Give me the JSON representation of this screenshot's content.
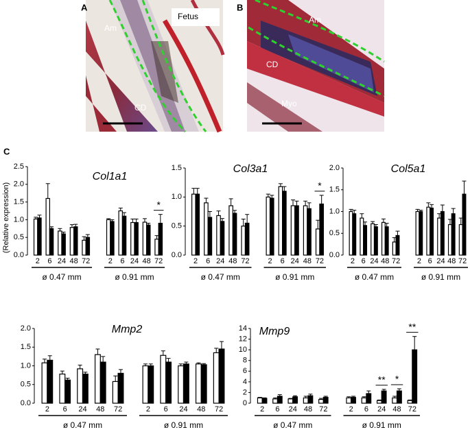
{
  "panels": [
    {
      "label": "A",
      "annotations": [
        "Am",
        "Fetus",
        "CD"
      ]
    },
    {
      "label": "B",
      "annotations": [
        "Am",
        "CD",
        "Myo"
      ]
    }
  ],
  "section_label": "C",
  "chart_data": [
    {
      "type": "bar",
      "title": "Col1a1",
      "ylabel": "(Relative expression)",
      "categories": [
        "2",
        "6",
        "24",
        "48",
        "72",
        "2",
        "6",
        "24",
        "48",
        "72"
      ],
      "groups": [
        "ø 0.47 mm",
        "ø 0.91 mm"
      ],
      "ylim": [
        0,
        2.5
      ],
      "yticks": [
        {
          "value": 0,
          "label": "0.0"
        },
        0.5,
        {
          "value": 1,
          "label": "1.0"
        },
        1.5,
        {
          "value": 2,
          "label": "2.0"
        },
        2.5
      ],
      "series": [
        {
          "color": "#ffffff",
          "values": [
            1.02,
            1.6,
            0.68,
            0.78,
            0.42,
            1.0,
            1.25,
            0.92,
            0.93,
            0.45
          ],
          "errors": [
            0.05,
            0.42,
            0.07,
            0.08,
            0.1,
            0.03,
            0.08,
            0.1,
            0.1,
            0.1
          ]
        },
        {
          "color": "#000000",
          "values": [
            1.05,
            0.75,
            0.6,
            0.8,
            0.5,
            0.95,
            1.1,
            0.92,
            0.85,
            0.9
          ],
          "errors": [
            0.08,
            0.05,
            0.05,
            0.07,
            0.08,
            0.05,
            0.1,
            0.1,
            0.05,
            0.25
          ]
        }
      ],
      "annotations": [
        {
          "text": "*",
          "index": 9
        }
      ]
    },
    {
      "type": "bar",
      "title": "Col3a1",
      "categories": [
        "2",
        "6",
        "24",
        "48",
        "72",
        "2",
        "6",
        "24",
        "48",
        "72"
      ],
      "groups": [
        "ø 0.47 mm",
        "ø 0.91 mm"
      ],
      "ylim": [
        0,
        1.5
      ],
      "yticks": [
        {
          "value": 0,
          "label": "0.0"
        },
        0.5,
        {
          "value": 1,
          "label": "1.0"
        },
        1.5
      ],
      "series": [
        {
          "color": "#ffffff",
          "values": [
            1.05,
            0.9,
            0.68,
            0.85,
            0.5,
            1.0,
            1.18,
            0.85,
            0.85,
            0.45
          ],
          "errors": [
            0.1,
            0.08,
            0.08,
            0.12,
            0.12,
            0.05,
            0.05,
            0.1,
            0.08,
            0.15
          ]
        },
        {
          "color": "#000000",
          "values": [
            1.05,
            0.65,
            0.58,
            0.72,
            0.55,
            0.98,
            1.1,
            0.85,
            0.8,
            0.88
          ],
          "errors": [
            0.1,
            0.1,
            0.05,
            0.05,
            0.15,
            0.05,
            0.08,
            0.08,
            0.1,
            0.15
          ]
        }
      ],
      "annotations": [
        {
          "text": "*",
          "index": 9
        }
      ]
    },
    {
      "type": "bar",
      "title": "Col5a1",
      "categories": [
        "2",
        "6",
        "24",
        "48",
        "72",
        "2",
        "6",
        "24",
        "48",
        "72"
      ],
      "groups": [
        "ø 0.47 mm",
        "ø 0.91 mm"
      ],
      "ylim": [
        0,
        2
      ],
      "yticks": [
        {
          "value": 0,
          "label": "0.0"
        },
        0.5,
        {
          "value": 1,
          "label": "1.0"
        },
        1.5,
        {
          "value": 2,
          "label": "2.0"
        }
      ],
      "series": [
        {
          "color": "#ffffff",
          "values": [
            1.0,
            0.85,
            0.72,
            0.75,
            0.3,
            1.0,
            1.1,
            0.85,
            0.7,
            0.7
          ],
          "errors": [
            0.05,
            0.1,
            0.05,
            0.08,
            0.1,
            0.05,
            0.1,
            0.1,
            0.12,
            0.15
          ]
        },
        {
          "color": "#000000",
          "values": [
            0.95,
            0.68,
            0.65,
            0.65,
            0.45,
            1.0,
            1.08,
            1.0,
            0.95,
            1.4
          ],
          "errors": [
            0.08,
            0.08,
            0.05,
            0.08,
            0.1,
            0.03,
            0.08,
            0.15,
            0.12,
            0.3
          ]
        }
      ],
      "annotations": []
    },
    {
      "type": "bar",
      "title": "Mmp2",
      "categories": [
        "2",
        "6",
        "24",
        "48",
        "72",
        "2",
        "6",
        "24",
        "48",
        "72"
      ],
      "groups": [
        "ø 0.47 mm",
        "ø 0.91 mm"
      ],
      "ylim": [
        0,
        2
      ],
      "yticks": [
        {
          "value": 0,
          "label": "0.0"
        },
        0.5,
        {
          "value": 1,
          "label": "1.0"
        },
        1.5,
        {
          "value": 2,
          "label": "2.0"
        }
      ],
      "series": [
        {
          "color": "#ffffff",
          "values": [
            1.08,
            0.78,
            0.92,
            1.3,
            0.58,
            1.0,
            1.28,
            1.0,
            1.05,
            1.35
          ],
          "errors": [
            0.1,
            0.08,
            0.1,
            0.15,
            0.15,
            0.05,
            0.12,
            0.05,
            0.03,
            0.12
          ]
        },
        {
          "color": "#000000",
          "values": [
            1.15,
            0.62,
            0.78,
            1.1,
            0.8,
            1.0,
            1.1,
            1.05,
            1.03,
            1.45
          ],
          "errors": [
            0.12,
            0.05,
            0.05,
            0.15,
            0.1,
            0.05,
            0.1,
            0.05,
            0.03,
            0.2
          ]
        }
      ],
      "annotations": []
    },
    {
      "type": "bar",
      "title": "Mmp9",
      "categories": [
        "2",
        "6",
        "24",
        "48",
        "72",
        "2",
        "6",
        "24",
        "48",
        "72"
      ],
      "groups": [
        "ø 0.47 mm",
        "ø 0.91 mm"
      ],
      "ylim": [
        0,
        14
      ],
      "yticks": [
        0,
        2,
        4,
        6,
        8,
        10,
        12,
        14
      ],
      "series": [
        {
          "color": "#ffffff",
          "values": [
            1.0,
            0.8,
            0.8,
            1.0,
            0.7,
            1.0,
            1.0,
            0.5,
            1.0,
            0.5
          ],
          "errors": [
            0.1,
            0.2,
            0.1,
            0.3,
            0.2,
            0.2,
            0.2,
            0.1,
            0.3,
            0.1
          ]
        },
        {
          "color": "#000000",
          "values": [
            0.9,
            1.3,
            1.2,
            1.4,
            1.1,
            1.1,
            1.8,
            2.3,
            2.3,
            10.0
          ],
          "errors": [
            0.1,
            0.3,
            0.2,
            0.3,
            0.2,
            0.2,
            0.5,
            0.3,
            0.4,
            2.5
          ]
        }
      ],
      "annotations": [
        {
          "text": "**",
          "index": 7
        },
        {
          "text": "*",
          "index": 8
        },
        {
          "text": "**",
          "index": 9
        }
      ]
    }
  ]
}
